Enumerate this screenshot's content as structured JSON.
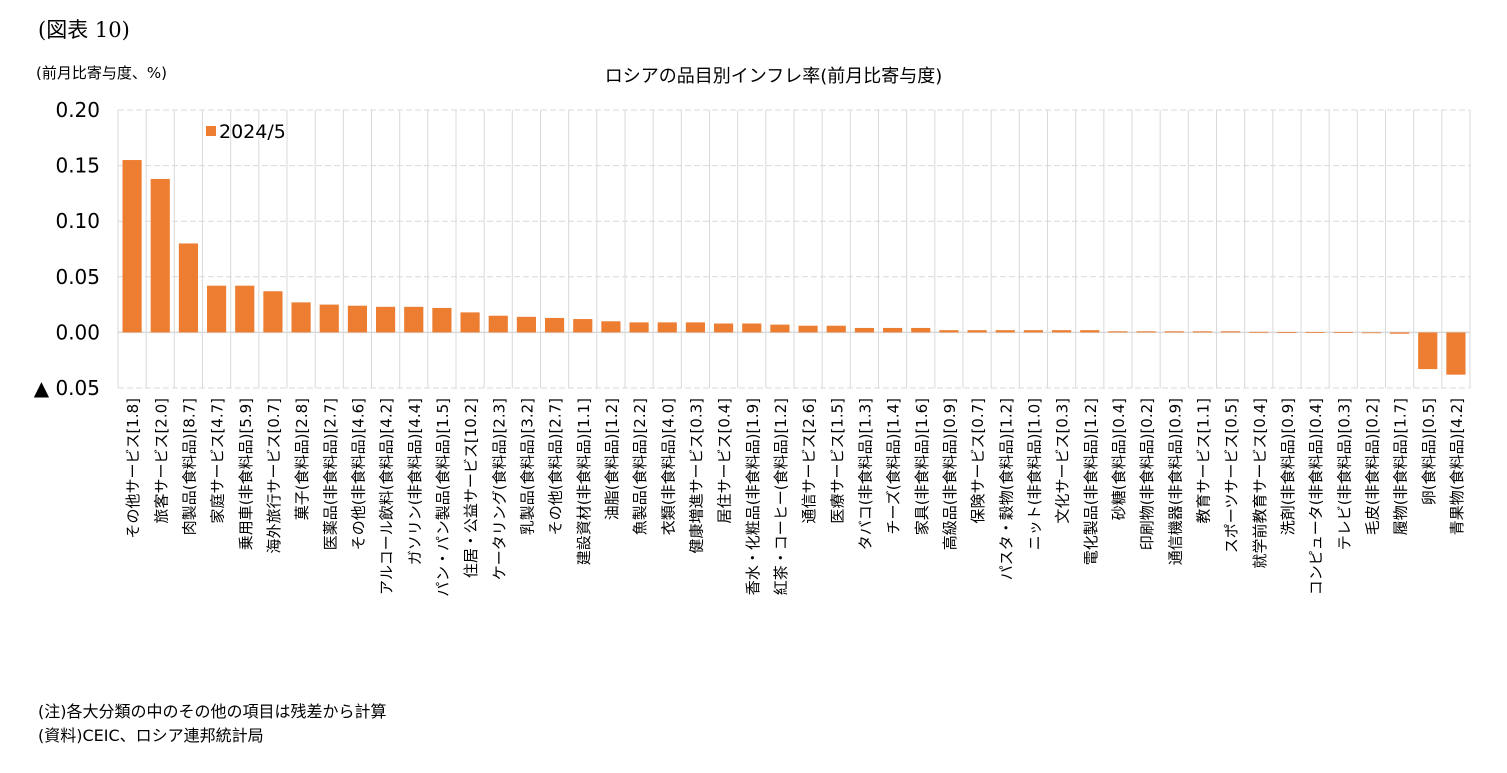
{
  "figure_label": "(図表 10)",
  "unit_label": "(前月比寄与度、%)",
  "notes": [
    "(注)各大分類の中のその他の項目は残差から計算",
    "(資料)CEIC、ロシア連邦統計局"
  ],
  "colors": {
    "bar": "#ED7D31",
    "grid": "#D9D9D9"
  },
  "chart_data": {
    "type": "bar",
    "title": "ロシアの品目別インフレ率(前月比寄与度)",
    "xlabel": "",
    "ylabel": "(前月比寄与度、%)",
    "ylim": [
      -0.05,
      0.2
    ],
    "yticks": [
      0.2,
      0.15,
      0.1,
      0.05,
      0.0,
      -0.05
    ],
    "ytick_labels": [
      "0.20",
      "0.15",
      "0.10",
      "0.05",
      "0.00",
      "▲ 0.05"
    ],
    "grid": true,
    "legend": {
      "position": "top-left",
      "entries": [
        "2024/5"
      ]
    },
    "categories": [
      "その他サービス[1.8]",
      "旅客サービス[2.0]",
      "肉製品(食料品)[8.7]",
      "家庭サービス[4.7]",
      "乗用車(非食料品)[5.9]",
      "海外旅行サービス[0.7]",
      "菓子(食料品)[2.8]",
      "医薬品(非食料品)[2.7]",
      "その他(非食料品)[4.6]",
      "アルコール飲料(食料品)[4.2]",
      "ガソリン(非食料品)[4.4]",
      "パン・パン製品(食料品)[1.5]",
      "住居・公益サービス[10.2]",
      "ケータリング(食料品)[2.3]",
      "乳製品(食料品)[3.2]",
      "その他(食料品)[2.7]",
      "建設資材(非食料品)[1.1]",
      "油脂(食料品)[1.2]",
      "魚製品(食料品)[2.2]",
      "衣類(非食料品)[4.0]",
      "健康増進サービス[0.3]",
      "居住サービス[0.4]",
      "香水・化粧品(非食料品)[1.9]",
      "紅茶・コーヒー(食料品)[1.2]",
      "通信サービス[2.6]",
      "医療サービス[1.5]",
      "タバコ(非食料品)[1.3]",
      "チーズ(食料品)[1.4]",
      "家具(非食料品)[1.6]",
      "高級品(非食料品)[0.9]",
      "保険サービス[0.7]",
      "パスタ・穀物(食料品)[1.2]",
      "ニット(非食料品)[1.0]",
      "文化サービス[0.3]",
      "電化製品(非食料品)[1.2]",
      "砂糖(食料品)[0.4]",
      "印刷物(非食料品)[0.2]",
      "通信機器(非食料品)[0.9]",
      "教育サービス[1.1]",
      "スポーツサービス[0.5]",
      "就学前教育サービス[0.4]",
      "洗剤(非食料品)[0.9]",
      "コンピュータ(非食料品)[0.4]",
      "テレビ(非食料品)[0.3]",
      "毛皮(非食料品)[0.2]",
      "履物(非食料品)[1.7]",
      "卵(食料品)[0.5]",
      "青果物(食料品)[4.2]"
    ],
    "series": [
      {
        "name": "2024/5",
        "values": [
          0.155,
          0.138,
          0.08,
          0.042,
          0.042,
          0.037,
          0.027,
          0.025,
          0.024,
          0.023,
          0.023,
          0.022,
          0.018,
          0.015,
          0.014,
          0.013,
          0.012,
          0.01,
          0.009,
          0.009,
          0.009,
          0.008,
          0.008,
          0.007,
          0.006,
          0.006,
          0.004,
          0.004,
          0.004,
          0.002,
          0.002,
          0.002,
          0.002,
          0.002,
          0.002,
          0.001,
          0.001,
          0.001,
          0.001,
          0.001,
          0.0005,
          0.0003,
          0.0002,
          0.0002,
          -0.0004,
          -0.0012,
          -0.033,
          -0.038
        ]
      }
    ]
  }
}
